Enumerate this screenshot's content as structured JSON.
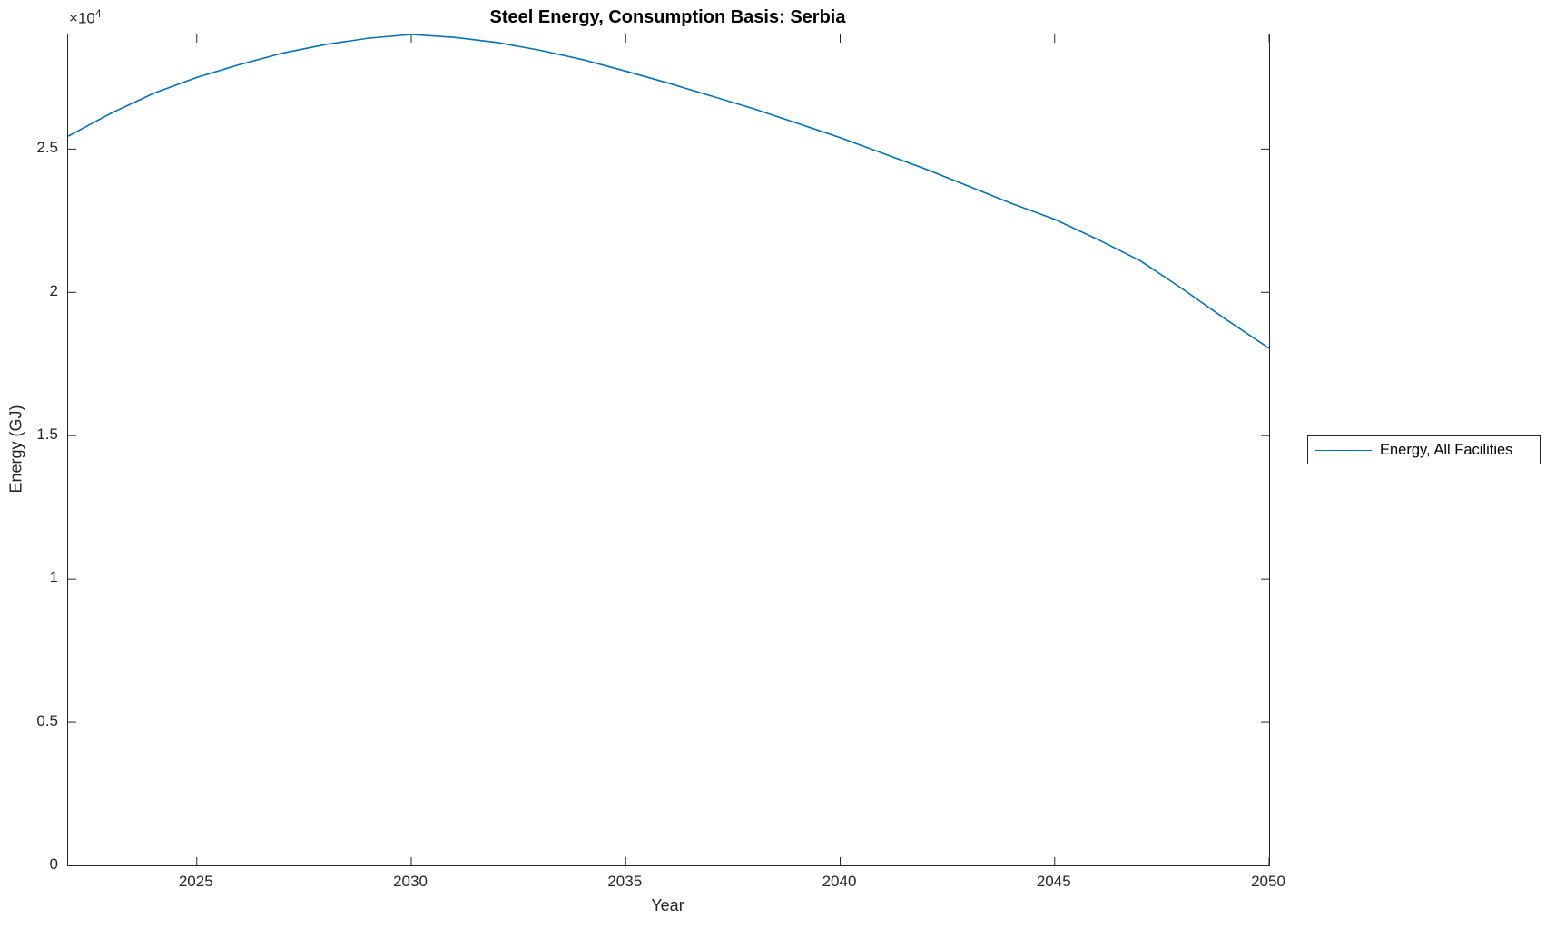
{
  "figure": {
    "background": "#ffffff",
    "axis_color": "#262626",
    "y_multiplier": {
      "times_base": "×10",
      "exponent": "4"
    }
  },
  "chart_data": {
    "type": "line",
    "title": "Steel Energy, Consumption Basis: Serbia",
    "xlabel": "Year",
    "ylabel": "Energy (GJ)",
    "xlim": [
      2022,
      2050
    ],
    "ylim": [
      0,
      29000
    ],
    "x_ticks": [
      2025,
      2030,
      2035,
      2040,
      2045,
      2050
    ],
    "x_tick_labels": [
      "2025",
      "2030",
      "2035",
      "2040",
      "2045",
      "2050"
    ],
    "y_ticks": [
      0,
      5000,
      10000,
      15000,
      20000,
      25000
    ],
    "y_tick_labels": [
      "0",
      "0.5",
      "1",
      "1.5",
      "2",
      "2.5"
    ],
    "y_axis_multiplier": "1e4",
    "grid": false,
    "legend": {
      "position": "outside-right",
      "entries": [
        {
          "label": "Energy, All Facilities",
          "color": "#0072BD"
        }
      ]
    },
    "series": [
      {
        "name": "Energy, All Facilities",
        "color": "#0072BD",
        "x": [
          2022,
          2023,
          2024,
          2025,
          2026,
          2027,
          2028,
          2029,
          2030,
          2031,
          2032,
          2033,
          2034,
          2035,
          2036,
          2037,
          2038,
          2039,
          2040,
          2041,
          2042,
          2043,
          2044,
          2045,
          2046,
          2047,
          2048,
          2049,
          2050
        ],
        "y": [
          25450,
          26250,
          26950,
          27500,
          27950,
          28350,
          28650,
          28870,
          29000,
          28900,
          28720,
          28450,
          28120,
          27720,
          27300,
          26850,
          26400,
          25900,
          25400,
          24850,
          24300,
          23700,
          23100,
          22550,
          21850,
          21100,
          20100,
          19050,
          18050
        ]
      }
    ]
  }
}
